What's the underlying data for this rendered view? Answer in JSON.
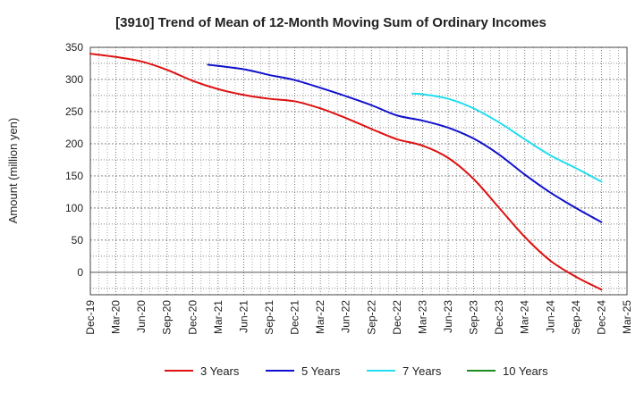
{
  "chart_data": {
    "type": "line",
    "title": "[3910]  Trend of Mean of 12-Month Moving Sum of Ordinary Incomes",
    "xlabel": "",
    "ylabel": "Amount (million yen)",
    "ylim": [
      -35,
      350
    ],
    "yticks": [
      0,
      50,
      100,
      150,
      200,
      250,
      300,
      350
    ],
    "grid": true,
    "legend_position": "bottom",
    "categories": [
      "Dec-19",
      "Mar-20",
      "Jun-20",
      "Sep-20",
      "Dec-20",
      "Mar-21",
      "Jun-21",
      "Sep-21",
      "Dec-21",
      "Mar-22",
      "Jun-22",
      "Sep-22",
      "Dec-22",
      "Mar-23",
      "Jun-23",
      "Sep-23",
      "Dec-23",
      "Mar-24",
      "Jun-24",
      "Sep-24",
      "Dec-24",
      "Mar-25"
    ],
    "series": [
      {
        "name": "3 Years",
        "color": "#dd1111",
        "points": [
          [
            0,
            340
          ],
          [
            1,
            335
          ],
          [
            2,
            328
          ],
          [
            3,
            315
          ],
          [
            4,
            298
          ],
          [
            5,
            285
          ],
          [
            6,
            276
          ],
          [
            7,
            270
          ],
          [
            8,
            266
          ],
          [
            9,
            255
          ],
          [
            10,
            240
          ],
          [
            11,
            223
          ],
          [
            12,
            207
          ],
          [
            13,
            197
          ],
          [
            14,
            178
          ],
          [
            15,
            145
          ],
          [
            16,
            100
          ],
          [
            17,
            55
          ],
          [
            18,
            18
          ],
          [
            19,
            -7
          ],
          [
            20,
            -27
          ]
        ]
      },
      {
        "name": "5 Years",
        "color": "#1010cc",
        "points": [
          [
            4.6,
            323
          ],
          [
            6,
            316
          ],
          [
            7,
            307
          ],
          [
            8,
            299
          ],
          [
            9,
            287
          ],
          [
            10,
            274
          ],
          [
            11,
            260
          ],
          [
            12,
            244
          ],
          [
            13,
            236
          ],
          [
            14,
            225
          ],
          [
            15,
            208
          ],
          [
            16,
            183
          ],
          [
            17,
            152
          ],
          [
            18,
            124
          ],
          [
            19,
            100
          ],
          [
            20,
            78
          ]
        ]
      },
      {
        "name": "7 Years",
        "color": "#22ddee",
        "points": [
          [
            12.6,
            278
          ],
          [
            13,
            277
          ],
          [
            14,
            270
          ],
          [
            15,
            255
          ],
          [
            16,
            233
          ],
          [
            17,
            207
          ],
          [
            18,
            182
          ],
          [
            19,
            162
          ],
          [
            20,
            141
          ]
        ]
      },
      {
        "name": "10 Years",
        "color": "#1e8c1e",
        "points": []
      }
    ]
  }
}
